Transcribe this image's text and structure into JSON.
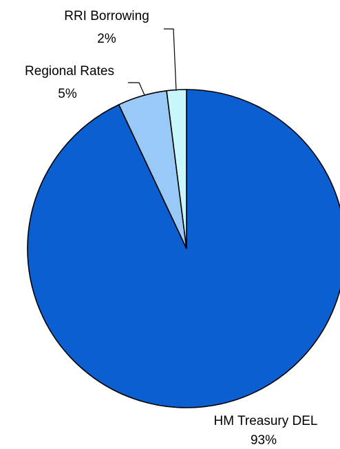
{
  "chart_data": {
    "type": "pie",
    "title": "",
    "slices": [
      {
        "label": "HM Treasury DEL",
        "value": 93,
        "display": "93%",
        "color": "#0b5fd0"
      },
      {
        "label": "Regional Rates",
        "value": 5,
        "display": "5%",
        "color": "#99c9f7"
      },
      {
        "label": "RRI Borrowing",
        "value": 2,
        "display": "2%",
        "color": "#c8f6fb"
      }
    ],
    "start_angle_deg": 0,
    "direction": "clockwise",
    "legend": "none",
    "labels": "outside, with leader lines for small slices"
  }
}
